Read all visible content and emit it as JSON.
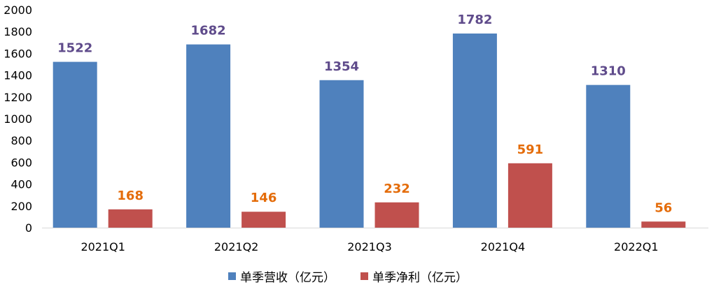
{
  "chart_data": {
    "type": "bar",
    "categories": [
      "2021Q1",
      "2021Q2",
      "2021Q3",
      "2021Q4",
      "2022Q1"
    ],
    "series": [
      {
        "name": "单季营收（亿元）",
        "values": [
          1522,
          1682,
          1354,
          1782,
          1310
        ],
        "color": "#4f81bd",
        "label_color": "#5f4b8b"
      },
      {
        "name": "单季净利（亿元）",
        "values": [
          168,
          146,
          232,
          591,
          56
        ],
        "color": "#c0504d",
        "label_color": "#e46c0a"
      }
    ],
    "ylim": [
      0,
      2000
    ],
    "yticks": [
      "0",
      "200",
      "400",
      "600",
      "800",
      "1000",
      "1200",
      "1400",
      "1600",
      "1800",
      "2000"
    ],
    "grid": false,
    "legend_position": "bottom"
  }
}
